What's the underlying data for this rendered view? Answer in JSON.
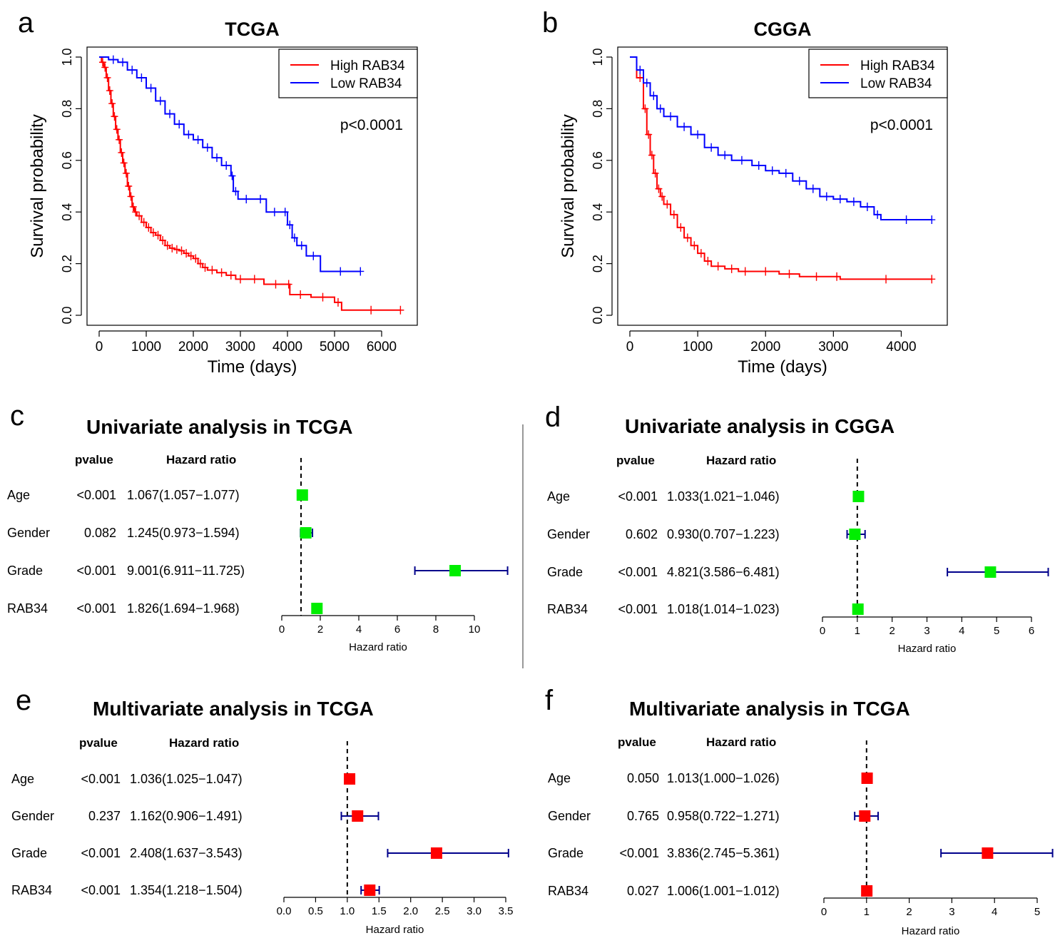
{
  "colors": {
    "high": "#ff0000",
    "low": "#0000ff",
    "uni": "#00ee00",
    "multi": "#ff0000",
    "ci": "#00008b",
    "axis": "#000000"
  },
  "chart_data": [
    {
      "type": "line",
      "panel": "a",
      "title": "TCGA",
      "xlabel": "Time (days)",
      "ylabel": "Survival probability",
      "xlim": [
        0,
        6500
      ],
      "ylim": [
        0,
        1
      ],
      "xticks": [
        "0",
        "1000",
        "2000",
        "3000",
        "4000",
        "5000",
        "6000"
      ],
      "yticks": [
        "0.0",
        "0.2",
        "0.4",
        "0.6",
        "0.8",
        "1.0"
      ],
      "legend_position": "top-right",
      "annotation": "p<0.0001",
      "series": [
        {
          "name": "High RAB34",
          "color": "#ff0000",
          "x": [
            0,
            50,
            100,
            150,
            200,
            250,
            300,
            350,
            400,
            450,
            500,
            550,
            600,
            650,
            700,
            750,
            800,
            900,
            1000,
            1100,
            1200,
            1300,
            1400,
            1500,
            1600,
            1700,
            1800,
            1900,
            2000,
            2100,
            2200,
            2300,
            2500,
            2700,
            2900,
            3100,
            3500,
            4000,
            4050,
            4500,
            5000,
            5150,
            6400
          ],
          "y": [
            1.0,
            0.98,
            0.96,
            0.92,
            0.87,
            0.82,
            0.77,
            0.72,
            0.68,
            0.63,
            0.59,
            0.55,
            0.5,
            0.46,
            0.42,
            0.4,
            0.385,
            0.36,
            0.34,
            0.32,
            0.31,
            0.29,
            0.27,
            0.26,
            0.255,
            0.25,
            0.24,
            0.23,
            0.22,
            0.2,
            0.185,
            0.175,
            0.165,
            0.155,
            0.14,
            0.14,
            0.12,
            0.12,
            0.08,
            0.07,
            0.05,
            0.02,
            0.02
          ]
        },
        {
          "name": "Low RAB34",
          "color": "#0000ff",
          "x": [
            0,
            200,
            400,
            600,
            800,
            1000,
            1200,
            1400,
            1600,
            1800,
            2000,
            2200,
            2400,
            2600,
            2800,
            2850,
            2950,
            3300,
            3550,
            3900,
            4000,
            4100,
            4200,
            4400,
            4700,
            5550
          ],
          "y": [
            1.0,
            0.99,
            0.98,
            0.95,
            0.92,
            0.88,
            0.83,
            0.78,
            0.74,
            0.7,
            0.68,
            0.65,
            0.61,
            0.58,
            0.54,
            0.48,
            0.45,
            0.45,
            0.4,
            0.4,
            0.35,
            0.3,
            0.27,
            0.23,
            0.17,
            0.17
          ]
        }
      ]
    },
    {
      "type": "line",
      "panel": "b",
      "title": "CGGA",
      "xlabel": "Time (days)",
      "ylabel": "Survival probability",
      "xlim": [
        0,
        4500
      ],
      "ylim": [
        0,
        1
      ],
      "xticks": [
        "0",
        "1000",
        "2000",
        "3000",
        "4000"
      ],
      "yticks": [
        "0.0",
        "0.2",
        "0.4",
        "0.6",
        "0.8",
        "1.0"
      ],
      "legend_position": "top-right",
      "annotation": "p<0.0001",
      "series": [
        {
          "name": "High RAB34",
          "color": "#ff0000",
          "x": [
            0,
            100,
            200,
            250,
            300,
            350,
            400,
            450,
            500,
            600,
            700,
            800,
            900,
            1000,
            1100,
            1200,
            1400,
            1600,
            1800,
            2200,
            2500,
            3000,
            3100,
            4450
          ],
          "y": [
            1.0,
            0.92,
            0.8,
            0.7,
            0.62,
            0.55,
            0.49,
            0.46,
            0.43,
            0.39,
            0.34,
            0.3,
            0.27,
            0.24,
            0.21,
            0.19,
            0.18,
            0.17,
            0.17,
            0.16,
            0.15,
            0.15,
            0.14,
            0.14
          ]
        },
        {
          "name": "Low RAB34",
          "color": "#0000ff",
          "x": [
            0,
            100,
            200,
            300,
            400,
            500,
            700,
            900,
            1100,
            1300,
            1500,
            1800,
            2000,
            2200,
            2400,
            2600,
            2800,
            3000,
            3200,
            3400,
            3600,
            3700,
            4450
          ],
          "y": [
            1.0,
            0.95,
            0.9,
            0.85,
            0.8,
            0.77,
            0.73,
            0.7,
            0.65,
            0.62,
            0.6,
            0.58,
            0.56,
            0.55,
            0.52,
            0.49,
            0.46,
            0.45,
            0.44,
            0.42,
            0.39,
            0.37,
            0.37
          ]
        }
      ]
    },
    {
      "type": "forest",
      "panel": "c",
      "title": "Univariate analysis in TCGA",
      "xlabel": "Hazard ratio",
      "col_pvalue": "pvalue",
      "col_hr": "Hazard ratio",
      "xlim": [
        0,
        12
      ],
      "xticks": [
        "0",
        "2",
        "4",
        "6",
        "8",
        "10"
      ],
      "rows": [
        {
          "label": "Age",
          "pvalue": "<0.001",
          "hr_text": "1.067(1.057−1.077)",
          "hr": 1.067,
          "lo": 1.057,
          "hi": 1.077
        },
        {
          "label": "Gender",
          "pvalue": "0.082",
          "hr_text": "1.245(0.973−1.594)",
          "hr": 1.245,
          "lo": 0.973,
          "hi": 1.594
        },
        {
          "label": "Grade",
          "pvalue": "<0.001",
          "hr_text": "9.001(6.911−11.725)",
          "hr": 9.001,
          "lo": 6.911,
          "hi": 11.725
        },
        {
          "label": "RAB34",
          "pvalue": "<0.001",
          "hr_text": "1.826(1.694−1.968)",
          "hr": 1.826,
          "lo": 1.694,
          "hi": 1.968
        }
      ]
    },
    {
      "type": "forest",
      "panel": "d",
      "title": "Univariate analysis in CGGA",
      "xlabel": "Hazard ratio",
      "col_pvalue": "pvalue",
      "col_hr": "Hazard ratio",
      "xlim": [
        0,
        6.5
      ],
      "xticks": [
        "0",
        "1",
        "2",
        "3",
        "4",
        "5",
        "6"
      ],
      "rows": [
        {
          "label": "Age",
          "pvalue": "<0.001",
          "hr_text": "1.033(1.021−1.046)",
          "hr": 1.033,
          "lo": 1.021,
          "hi": 1.046
        },
        {
          "label": "Gender",
          "pvalue": "0.602",
          "hr_text": "0.930(0.707−1.223)",
          "hr": 0.93,
          "lo": 0.707,
          "hi": 1.223
        },
        {
          "label": "Grade",
          "pvalue": "<0.001",
          "hr_text": "4.821(3.586−6.481)",
          "hr": 4.821,
          "lo": 3.586,
          "hi": 6.481
        },
        {
          "label": "RAB34",
          "pvalue": "<0.001",
          "hr_text": "1.018(1.014−1.023)",
          "hr": 1.018,
          "lo": 1.014,
          "hi": 1.023
        }
      ]
    },
    {
      "type": "forest",
      "panel": "e",
      "title": "Multivariate analysis in TCGA",
      "xlabel": "Hazard ratio",
      "col_pvalue": "pvalue",
      "col_hr": "Hazard ratio",
      "xlim": [
        0,
        3.5
      ],
      "xticks": [
        "0.0",
        "0.5",
        "1.0",
        "1.5",
        "2.0",
        "2.5",
        "3.0",
        "3.5"
      ],
      "rows": [
        {
          "label": "Age",
          "pvalue": "<0.001",
          "hr_text": "1.036(1.025−1.047)",
          "hr": 1.036,
          "lo": 1.025,
          "hi": 1.047
        },
        {
          "label": "Gender",
          "pvalue": "0.237",
          "hr_text": "1.162(0.906−1.491)",
          "hr": 1.162,
          "lo": 0.906,
          "hi": 1.491
        },
        {
          "label": "Grade",
          "pvalue": "<0.001",
          "hr_text": "2.408(1.637−3.543)",
          "hr": 2.408,
          "lo": 1.637,
          "hi": 3.543
        },
        {
          "label": "RAB34",
          "pvalue": "<0.001",
          "hr_text": "1.354(1.218−1.504)",
          "hr": 1.354,
          "lo": 1.218,
          "hi": 1.504
        }
      ]
    },
    {
      "type": "forest",
      "panel": "f",
      "title": "Multivariate analysis in TCGA",
      "xlabel": "Hazard ratio",
      "col_pvalue": "pvalue",
      "col_hr": "Hazard ratio",
      "xlim": [
        0,
        5.4
      ],
      "xticks": [
        "0",
        "1",
        "2",
        "3",
        "4",
        "5"
      ],
      "rows": [
        {
          "label": "Age",
          "pvalue": "0.050",
          "hr_text": "1.013(1.000−1.026)",
          "hr": 1.013,
          "lo": 1.0,
          "hi": 1.026
        },
        {
          "label": "Gender",
          "pvalue": "0.765",
          "hr_text": "0.958(0.722−1.271)",
          "hr": 0.958,
          "lo": 0.722,
          "hi": 1.271
        },
        {
          "label": "Grade",
          "pvalue": "<0.001",
          "hr_text": "3.836(2.745−5.361)",
          "hr": 3.836,
          "lo": 2.745,
          "hi": 5.361
        },
        {
          "label": "RAB34",
          "pvalue": "0.027",
          "hr_text": "1.006(1.001−1.012)",
          "hr": 1.006,
          "lo": 1.001,
          "hi": 1.012
        }
      ]
    }
  ]
}
